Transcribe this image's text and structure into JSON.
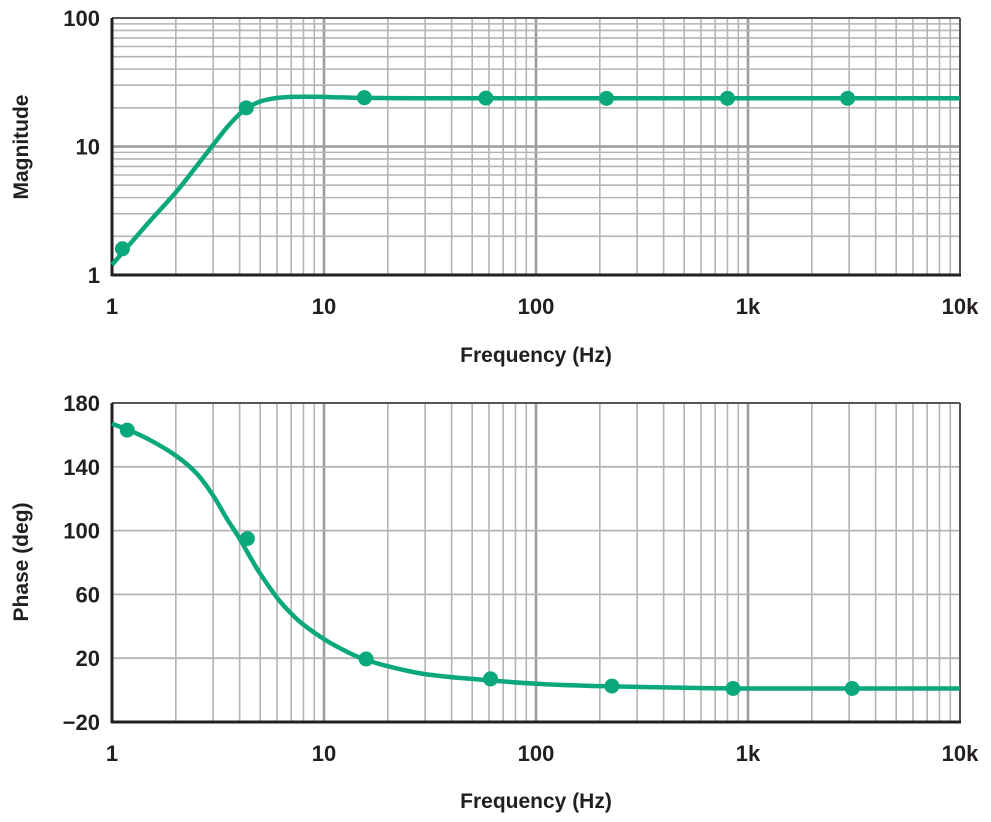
{
  "chart_data": [
    {
      "type": "line",
      "title": "",
      "xlabel": "Frequency (Hz)",
      "ylabel": "Magnitude",
      "xscale": "log",
      "yscale": "log",
      "xlim": [
        1,
        10000
      ],
      "ylim": [
        1,
        100
      ],
      "grid": true,
      "x_ticks": [
        {
          "value": 1,
          "label": "1"
        },
        {
          "value": 10,
          "label": "10"
        },
        {
          "value": 100,
          "label": "100"
        },
        {
          "value": 1000,
          "label": "1k"
        },
        {
          "value": 10000,
          "label": "10k"
        }
      ],
      "y_ticks": [
        {
          "value": 1,
          "label": "1"
        },
        {
          "value": 10,
          "label": "10"
        },
        {
          "value": 100,
          "label": "100"
        }
      ],
      "series": [
        {
          "color": "#0aa87a",
          "curve": {
            "x": [
              1,
              1.2,
              1.5,
              2,
              2.5,
              3,
              3.5,
              4,
              4.5,
              5,
              5.5,
              6,
              7,
              8,
              10,
              12,
              15,
              20,
              30,
              50,
              100,
              1000,
              10000
            ],
            "y": [
              1.2,
              1.7,
              2.6,
              4.4,
              7.0,
              10.3,
              14.2,
              17.9,
              20.6,
              22.4,
              23.3,
              23.9,
              24.3,
              24.4,
              24.3,
              24.1,
              23.9,
              23.8,
              23.7,
              23.7,
              23.7,
              23.7,
              23.7
            ]
          },
          "markers": {
            "x": [
              1.12,
              4.3,
              15.5,
              58,
              215,
              800,
              2950
            ],
            "y": [
              1.6,
              20,
              24,
              23.8,
              23.7,
              23.7,
              23.7
            ]
          }
        }
      ]
    },
    {
      "type": "line",
      "title": "",
      "xlabel": "Frequency (Hz)",
      "ylabel": "Phase (deg)",
      "xscale": "log",
      "yscale": "linear",
      "xlim": [
        1,
        10000
      ],
      "ylim": [
        -20,
        180
      ],
      "grid": true,
      "x_ticks": [
        {
          "value": 1,
          "label": "1"
        },
        {
          "value": 10,
          "label": "10"
        },
        {
          "value": 100,
          "label": "100"
        },
        {
          "value": 1000,
          "label": "1k"
        },
        {
          "value": 10000,
          "label": "10k"
        }
      ],
      "y_ticks": [
        {
          "value": -20,
          "label": "−20"
        },
        {
          "value": 20,
          "label": "20"
        },
        {
          "value": 60,
          "label": "60"
        },
        {
          "value": 100,
          "label": "100"
        },
        {
          "value": 140,
          "label": "140"
        },
        {
          "value": 180,
          "label": "180"
        }
      ],
      "series": [
        {
          "color": "#0aa87a",
          "curve": {
            "x": [
              1,
              1.2,
              1.5,
              2,
              2.5,
              3,
              3.5,
              4,
              4.5,
              5,
              6,
              7,
              8,
              10,
              12,
              15,
              20,
              30,
              50,
              100,
              200,
              500,
              1000,
              3000,
              10000
            ],
            "y": [
              167,
              163,
              157,
              147,
              136,
              122,
              107,
              95,
              83,
              73,
              58,
              48,
              41,
              32,
              26,
              20,
              15,
              10,
              7,
              4,
              2.5,
              1.5,
              1,
              1,
              1
            ]
          },
          "markers": {
            "x": [
              1.18,
              4.35,
              15.8,
              61,
              228,
              850,
              3100
            ],
            "y": [
              163,
              95,
              19.5,
              7,
              2.5,
              1,
              1
            ]
          }
        }
      ]
    }
  ]
}
